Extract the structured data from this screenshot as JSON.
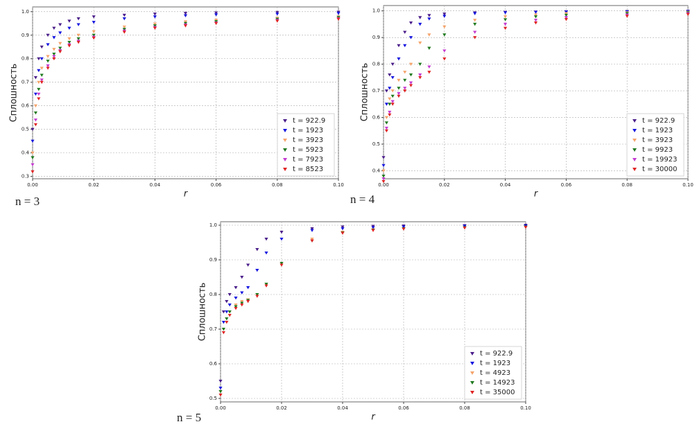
{
  "chart_data": [
    {
      "type": "scatter",
      "caption": "n = 3",
      "xlabel": "r",
      "ylabel": "Сплошность",
      "grid": true,
      "legend": "lower right",
      "x": [
        0,
        0.001,
        0.002,
        0.003,
        0.005,
        0.007,
        0.009,
        0.012,
        0.015,
        0.02,
        0.03,
        0.04,
        0.05,
        0.06,
        0.08,
        0.1
      ],
      "xlim": [
        0,
        0.1
      ],
      "xticks": [
        {
          "value": 0,
          "label": "0.00"
        },
        {
          "value": 0.02,
          "label": "0.02"
        },
        {
          "value": 0.04,
          "label": "0.04"
        },
        {
          "value": 0.06,
          "label": "0.06"
        },
        {
          "value": 0.08,
          "label": "0.08"
        },
        {
          "value": 0.1,
          "label": "0.10"
        }
      ],
      "ylim": [
        0.29,
        1.02
      ],
      "yticks": [
        0.3,
        0.4,
        0.5,
        0.6,
        0.7,
        0.8,
        0.9,
        {
          "value": 1,
          "label": "1.0"
        }
      ],
      "series": [
        {
          "name": "t = 922.9",
          "color": "#4b1f8a",
          "values": [
            0.5,
            0.72,
            0.8,
            0.85,
            0.9,
            0.93,
            0.945,
            0.96,
            0.97,
            0.978,
            0.985,
            0.99,
            0.993,
            0.995,
            0.997,
            0.998
          ]
        },
        {
          "name": "t = 1923",
          "color": "#1515e0",
          "values": [
            0.45,
            0.65,
            0.75,
            0.8,
            0.86,
            0.89,
            0.91,
            0.93,
            0.945,
            0.955,
            0.97,
            0.978,
            0.983,
            0.987,
            0.99,
            0.993
          ]
        },
        {
          "name": "t = 3923",
          "color": "#f5a46b",
          "values": [
            0.4,
            0.6,
            0.7,
            0.76,
            0.81,
            0.84,
            0.865,
            0.885,
            0.9,
            0.915,
            0.935,
            0.948,
            0.957,
            0.964,
            0.972,
            0.978
          ]
        },
        {
          "name": "t = 5923",
          "color": "#1f7a1f",
          "values": [
            0.38,
            0.57,
            0.67,
            0.73,
            0.79,
            0.82,
            0.845,
            0.87,
            0.885,
            0.9,
            0.925,
            0.94,
            0.95,
            0.958,
            0.968,
            0.975
          ]
        },
        {
          "name": "t = 7923",
          "color": "#c43ad0",
          "values": [
            0.35,
            0.54,
            0.65,
            0.71,
            0.77,
            0.81,
            0.835,
            0.86,
            0.875,
            0.892,
            0.918,
            0.933,
            0.944,
            0.952,
            0.963,
            0.97
          ]
        },
        {
          "name": "t = 8523",
          "color": "#e02424",
          "values": [
            0.32,
            0.52,
            0.63,
            0.7,
            0.76,
            0.8,
            0.83,
            0.855,
            0.87,
            0.888,
            0.913,
            0.93,
            0.94,
            0.95,
            0.96,
            0.968
          ]
        }
      ]
    },
    {
      "type": "scatter",
      "caption": "n = 4",
      "xlabel": "r",
      "ylabel": "Сплошность",
      "grid": true,
      "legend": "lower right",
      "x": [
        0,
        0.001,
        0.002,
        0.003,
        0.005,
        0.007,
        0.009,
        0.012,
        0.015,
        0.02,
        0.03,
        0.04,
        0.05,
        0.06,
        0.08,
        0.1
      ],
      "xlim": [
        0,
        0.1
      ],
      "xticks": [
        {
          "value": 0,
          "label": "0.00"
        },
        {
          "value": 0.02,
          "label": "0.02"
        },
        {
          "value": 0.04,
          "label": "0.04"
        },
        {
          "value": 0.06,
          "label": "0.06"
        },
        {
          "value": 0.08,
          "label": "0.08"
        },
        {
          "value": 0.1,
          "label": "0.10"
        }
      ],
      "ylim": [
        0.37,
        1.02
      ],
      "yticks": [
        0.4,
        0.5,
        0.6,
        0.7,
        0.8,
        0.9,
        {
          "value": 1,
          "label": "1.0"
        }
      ],
      "series": [
        {
          "name": "t = 922.9",
          "color": "#4b1f8a",
          "values": [
            0.45,
            0.7,
            0.76,
            0.8,
            0.87,
            0.92,
            0.955,
            0.975,
            0.983,
            0.988,
            0.993,
            0.995,
            0.996,
            0.997,
            0.998,
            0.999
          ]
        },
        {
          "name": "t = 1923",
          "color": "#1515e0",
          "values": [
            0.42,
            0.65,
            0.71,
            0.75,
            0.82,
            0.87,
            0.9,
            0.95,
            0.97,
            0.98,
            0.99,
            0.993,
            0.995,
            0.996,
            0.997,
            0.998
          ]
        },
        {
          "name": "t = 3923",
          "color": "#f5a46b",
          "values": [
            0.4,
            0.6,
            0.67,
            0.7,
            0.74,
            0.77,
            0.8,
            0.88,
            0.91,
            0.94,
            0.965,
            0.978,
            0.985,
            0.99,
            0.993,
            0.995
          ]
        },
        {
          "name": "t = 9923",
          "color": "#1f7a1f",
          "values": [
            0.38,
            0.58,
            0.65,
            0.68,
            0.71,
            0.74,
            0.76,
            0.8,
            0.86,
            0.91,
            0.95,
            0.967,
            0.978,
            0.984,
            0.99,
            0.993
          ]
        },
        {
          "name": "t = 19923",
          "color": "#c43ad0",
          "values": [
            0.37,
            0.56,
            0.62,
            0.66,
            0.69,
            0.71,
            0.73,
            0.76,
            0.79,
            0.85,
            0.92,
            0.95,
            0.965,
            0.975,
            0.985,
            0.99
          ]
        },
        {
          "name": "t = 30000",
          "color": "#e02424",
          "values": [
            0.36,
            0.55,
            0.61,
            0.65,
            0.68,
            0.7,
            0.72,
            0.75,
            0.77,
            0.82,
            0.9,
            0.935,
            0.955,
            0.968,
            0.98,
            0.987
          ]
        }
      ]
    },
    {
      "type": "scatter",
      "caption": "n = 5",
      "xlabel": "r",
      "ylabel": "Сплошность",
      "grid": true,
      "legend": "lower right",
      "x": [
        0,
        0.001,
        0.002,
        0.003,
        0.005,
        0.007,
        0.009,
        0.012,
        0.015,
        0.02,
        0.03,
        0.04,
        0.05,
        0.06,
        0.08,
        0.1
      ],
      "xlim": [
        0,
        0.1
      ],
      "xticks": [
        {
          "value": 0,
          "label": "0.00"
        },
        {
          "value": 0.02,
          "label": "0.02"
        },
        {
          "value": 0.04,
          "label": "0.04"
        },
        {
          "value": 0.06,
          "label": "0.06"
        },
        {
          "value": 0.08,
          "label": "0.08"
        },
        {
          "value": 0.1,
          "label": "0.10"
        }
      ],
      "ylim": [
        0.49,
        1.01
      ],
      "yticks": [
        0.5,
        0.6,
        0.7,
        0.8,
        0.9,
        {
          "value": 1,
          "label": "1.0"
        }
      ],
      "series": [
        {
          "name": "t = 922.9",
          "color": "#4b1f8a",
          "values": [
            0.55,
            0.75,
            0.78,
            0.8,
            0.82,
            0.85,
            0.885,
            0.93,
            0.96,
            0.98,
            0.99,
            0.995,
            0.997,
            0.998,
            0.999,
            1.0
          ]
        },
        {
          "name": "t = 1923",
          "color": "#1515e0",
          "values": [
            0.53,
            0.72,
            0.75,
            0.77,
            0.79,
            0.805,
            0.82,
            0.87,
            0.92,
            0.96,
            0.985,
            0.99,
            0.993,
            0.995,
            0.997,
            0.998
          ]
        },
        {
          "name": "t = 4923",
          "color": "#f5a46b",
          "values": [
            0.52,
            0.7,
            0.73,
            0.75,
            0.77,
            0.78,
            0.785,
            0.8,
            0.83,
            0.89,
            0.96,
            0.98,
            0.987,
            0.99,
            0.993,
            0.995
          ]
        },
        {
          "name": "t = 14923",
          "color": "#1f7a1f",
          "values": [
            0.52,
            0.7,
            0.73,
            0.75,
            0.765,
            0.775,
            0.783,
            0.8,
            0.83,
            0.89,
            0.955,
            0.978,
            0.986,
            0.99,
            0.993,
            0.995
          ]
        },
        {
          "name": "t = 35000",
          "color": "#e02424",
          "values": [
            0.51,
            0.69,
            0.72,
            0.74,
            0.76,
            0.77,
            0.78,
            0.795,
            0.825,
            0.885,
            0.955,
            0.977,
            0.985,
            0.989,
            0.992,
            0.994
          ]
        }
      ]
    }
  ]
}
